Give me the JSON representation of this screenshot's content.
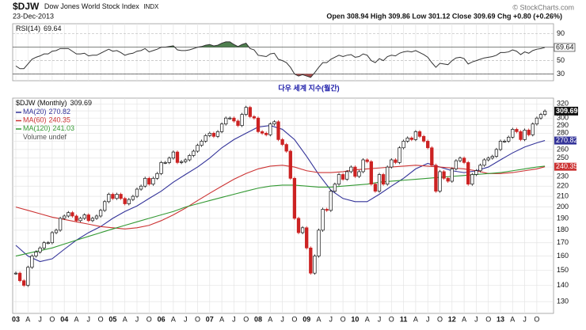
{
  "chart_data": {
    "type": "candlestick",
    "symbol": "$DJW",
    "name": "Dow Jones World Stock Index",
    "exchange": "INDX",
    "date": "23-Dec-2013",
    "quote": "Open 308.94 High 309.86 Low 301.12 Close 309.69 Chg +0.80 (+0.26%)",
    "source": "© StockCharts.com",
    "title": "다우 세계 지수(월간)",
    "legend_label": "$DJW (Monthly)",
    "volume_label": "Volume undef",
    "log_scale": true,
    "grid": true,
    "up_color": "#ffffff",
    "down_color": "#cc2222",
    "ylim": [
      125,
      325
    ],
    "yticks": [
      130,
      140,
      150,
      160,
      170,
      180,
      190,
      200,
      210,
      220,
      230,
      240,
      250,
      260,
      270,
      280,
      290,
      300,
      310,
      320
    ],
    "x": [
      "2003-01",
      "2003-02",
      "2003-03",
      "2003-04",
      "2003-05",
      "2003-06",
      "2003-07",
      "2003-08",
      "2003-09",
      "2003-10",
      "2003-11",
      "2003-12",
      "2004-01",
      "2004-02",
      "2004-03",
      "2004-04",
      "2004-05",
      "2004-06",
      "2004-07",
      "2004-08",
      "2004-09",
      "2004-10",
      "2004-11",
      "2004-12",
      "2005-01",
      "2005-02",
      "2005-03",
      "2005-04",
      "2005-05",
      "2005-06",
      "2005-07",
      "2005-08",
      "2005-09",
      "2005-10",
      "2005-11",
      "2005-12",
      "2006-01",
      "2006-02",
      "2006-03",
      "2006-04",
      "2006-05",
      "2006-06",
      "2006-07",
      "2006-08",
      "2006-09",
      "2006-10",
      "2006-11",
      "2006-12",
      "2007-01",
      "2007-02",
      "2007-03",
      "2007-04",
      "2007-05",
      "2007-06",
      "2007-07",
      "2007-08",
      "2007-09",
      "2007-10",
      "2007-11",
      "2007-12",
      "2008-01",
      "2008-02",
      "2008-03",
      "2008-04",
      "2008-05",
      "2008-06",
      "2008-07",
      "2008-08",
      "2008-09",
      "2008-10",
      "2008-11",
      "2008-12",
      "2009-01",
      "2009-02",
      "2009-03",
      "2009-04",
      "2009-05",
      "2009-06",
      "2009-07",
      "2009-08",
      "2009-09",
      "2009-10",
      "2009-11",
      "2009-12",
      "2010-01",
      "2010-02",
      "2010-03",
      "2010-04",
      "2010-05",
      "2010-06",
      "2010-07",
      "2010-08",
      "2010-09",
      "2010-10",
      "2010-11",
      "2010-12",
      "2011-01",
      "2011-02",
      "2011-03",
      "2011-04",
      "2011-05",
      "2011-06",
      "2011-07",
      "2011-08",
      "2011-09",
      "2011-10",
      "2011-11",
      "2011-12",
      "2012-01",
      "2012-02",
      "2012-03",
      "2012-04",
      "2012-05",
      "2012-06",
      "2012-07",
      "2012-08",
      "2012-09",
      "2012-10",
      "2012-11",
      "2012-12",
      "2013-01",
      "2013-02",
      "2013-03",
      "2013-04",
      "2013-05",
      "2013-06",
      "2013-07",
      "2013-08",
      "2013-09",
      "2013-10",
      "2013-11",
      "2013-12"
    ],
    "xticks": [
      {
        "value": "2003-01",
        "label": "03"
      },
      {
        "value": "2003-04",
        "label": "A"
      },
      {
        "value": "2003-07",
        "label": "J"
      },
      {
        "value": "2003-10",
        "label": "O"
      },
      {
        "value": "2004-01",
        "label": "04"
      },
      {
        "value": "2004-04",
        "label": "A"
      },
      {
        "value": "2004-07",
        "label": "J"
      },
      {
        "value": "2004-10",
        "label": "O"
      },
      {
        "value": "2005-01",
        "label": "05"
      },
      {
        "value": "2005-04",
        "label": "A"
      },
      {
        "value": "2005-07",
        "label": "J"
      },
      {
        "value": "2005-10",
        "label": "O"
      },
      {
        "value": "2006-01",
        "label": "06"
      },
      {
        "value": "2006-04",
        "label": "A"
      },
      {
        "value": "2006-07",
        "label": "J"
      },
      {
        "value": "2006-10",
        "label": "O"
      },
      {
        "value": "2007-01",
        "label": "07"
      },
      {
        "value": "2007-04",
        "label": "A"
      },
      {
        "value": "2007-07",
        "label": "J"
      },
      {
        "value": "2007-10",
        "label": "O"
      },
      {
        "value": "2008-01",
        "label": "08"
      },
      {
        "value": "2008-04",
        "label": "A"
      },
      {
        "value": "2008-07",
        "label": "J"
      },
      {
        "value": "2008-10",
        "label": "O"
      },
      {
        "value": "2009-01",
        "label": "09"
      },
      {
        "value": "2009-04",
        "label": "A"
      },
      {
        "value": "2009-07",
        "label": "J"
      },
      {
        "value": "2009-10",
        "label": "O"
      },
      {
        "value": "2010-01",
        "label": "10"
      },
      {
        "value": "2010-04",
        "label": "A"
      },
      {
        "value": "2010-07",
        "label": "J"
      },
      {
        "value": "2010-10",
        "label": "O"
      },
      {
        "value": "2011-01",
        "label": "11"
      },
      {
        "value": "2011-04",
        "label": "A"
      },
      {
        "value": "2011-07",
        "label": "J"
      },
      {
        "value": "2011-10",
        "label": "O"
      },
      {
        "value": "2012-01",
        "label": "12"
      },
      {
        "value": "2012-04",
        "label": "A"
      },
      {
        "value": "2012-07",
        "label": "J"
      },
      {
        "value": "2012-10",
        "label": "O"
      },
      {
        "value": "2013-01",
        "label": "13"
      },
      {
        "value": "2013-04",
        "label": "A"
      },
      {
        "value": "2013-07",
        "label": "J"
      },
      {
        "value": "2013-10",
        "label": "O"
      }
    ],
    "values": [
      148,
      143,
      140,
      152,
      160,
      163,
      166,
      170,
      170,
      178,
      180,
      190,
      192,
      195,
      192,
      188,
      190,
      193,
      188,
      190,
      192,
      197,
      205,
      212,
      208,
      212,
      208,
      203,
      207,
      210,
      217,
      220,
      228,
      222,
      228,
      233,
      245,
      245,
      250,
      257,
      245,
      246,
      248,
      253,
      258,
      265,
      270,
      277,
      280,
      276,
      282,
      292,
      300,
      300,
      296,
      290,
      305,
      315,
      302,
      300,
      282,
      280,
      278,
      292,
      295,
      272,
      266,
      258,
      228,
      190,
      178,
      182,
      166,
      148,
      160,
      180,
      198,
      197,
      215,
      222,
      232,
      227,
      235,
      240,
      230,
      235,
      248,
      246,
      222,
      215,
      232,
      222,
      240,
      248,
      245,
      262,
      270,
      274,
      272,
      282,
      276,
      270,
      262,
      242,
      215,
      235,
      228,
      225,
      238,
      247,
      250,
      245,
      222,
      232,
      236,
      242,
      248,
      250,
      252,
      260,
      270,
      270,
      275,
      285,
      282,
      272,
      284,
      278,
      292,
      300,
      305,
      309.69
    ],
    "series": [
      {
        "name": "MA(20)",
        "color": "#333399",
        "value_box": true,
        "x": [
          "2003-01",
          "2003-04",
          "2003-07",
          "2003-10",
          "2004-01",
          "2004-04",
          "2004-07",
          "2004-10",
          "2005-01",
          "2005-04",
          "2005-07",
          "2005-10",
          "2006-01",
          "2006-04",
          "2006-07",
          "2006-10",
          "2007-01",
          "2007-04",
          "2007-07",
          "2007-10",
          "2008-01",
          "2008-04",
          "2008-07",
          "2008-10",
          "2009-01",
          "2009-04",
          "2009-07",
          "2009-10",
          "2010-01",
          "2010-04",
          "2010-07",
          "2010-10",
          "2011-01",
          "2011-04",
          "2011-07",
          "2011-10",
          "2012-01",
          "2012-04",
          "2012-07",
          "2012-10",
          "2013-01",
          "2013-04",
          "2013-07",
          "2013-10",
          "2013-12"
        ],
        "values": [
          168,
          160,
          156,
          158,
          165,
          172,
          178,
          183,
          190,
          196,
          201,
          208,
          215,
          224,
          232,
          240,
          250,
          262,
          272,
          280,
          288,
          290,
          285,
          272,
          252,
          232,
          216,
          208,
          205,
          205,
          212,
          220,
          228,
          238,
          244,
          240,
          236,
          234,
          236,
          240,
          248,
          256,
          263,
          268,
          270.82
        ]
      },
      {
        "name": "MA(60)",
        "color": "#cc3333",
        "value_box": true,
        "x": [
          "2003-01",
          "2003-04",
          "2003-07",
          "2003-10",
          "2004-01",
          "2004-04",
          "2004-07",
          "2004-10",
          "2005-01",
          "2005-04",
          "2005-07",
          "2005-10",
          "2006-01",
          "2006-04",
          "2006-07",
          "2006-10",
          "2007-01",
          "2007-04",
          "2007-07",
          "2007-10",
          "2008-01",
          "2008-04",
          "2008-07",
          "2008-10",
          "2009-01",
          "2009-04",
          "2009-07",
          "2009-10",
          "2010-01",
          "2010-04",
          "2010-07",
          "2010-10",
          "2011-01",
          "2011-04",
          "2011-07",
          "2011-10",
          "2012-01",
          "2012-04",
          "2012-07",
          "2012-10",
          "2013-01",
          "2013-04",
          "2013-07",
          "2013-10",
          "2013-12"
        ],
        "values": [
          200,
          197,
          194,
          191,
          189,
          187,
          185,
          183,
          182,
          181,
          182,
          184,
          188,
          193,
          199,
          206,
          213,
          220,
          227,
          233,
          238,
          241,
          242,
          240,
          236,
          234,
          234,
          235,
          237,
          238,
          239,
          240,
          241,
          242,
          241,
          240,
          239,
          238,
          236,
          233,
          233,
          234,
          236,
          238,
          240.35
        ]
      },
      {
        "name": "MA(120)",
        "color": "#339933",
        "value_box": false,
        "x": [
          "2003-01",
          "2003-04",
          "2003-07",
          "2003-10",
          "2004-01",
          "2004-04",
          "2004-07",
          "2004-10",
          "2005-01",
          "2005-04",
          "2005-07",
          "2005-10",
          "2006-01",
          "2006-04",
          "2006-07",
          "2006-10",
          "2007-01",
          "2007-04",
          "2007-07",
          "2007-10",
          "2008-01",
          "2008-04",
          "2008-07",
          "2008-10",
          "2009-01",
          "2009-04",
          "2009-07",
          "2009-10",
          "2010-01",
          "2010-04",
          "2010-07",
          "2010-10",
          "2011-01",
          "2011-04",
          "2011-07",
          "2011-10",
          "2012-01",
          "2012-04",
          "2012-07",
          "2012-10",
          "2013-01",
          "2013-04",
          "2013-07",
          "2013-10",
          "2013-12"
        ],
        "values": [
          160,
          162,
          164,
          166,
          169,
          172,
          175,
          178,
          181,
          184,
          187,
          190,
          193,
          196,
          200,
          203,
          206,
          209,
          212,
          215,
          218,
          220,
          221,
          221,
          220,
          219,
          219,
          220,
          221,
          222,
          224,
          225,
          226,
          227,
          228,
          229,
          230,
          231,
          232,
          233,
          234,
          236,
          238,
          240,
          241.03
        ]
      }
    ],
    "rsi": {
      "name": "RSI(14)",
      "color": "#333333",
      "ylim": [
        20,
        105
      ],
      "yticks": [
        90,
        50,
        30
      ],
      "levels": [
        70,
        30
      ],
      "upper_fill": "#4f7f4f",
      "lower_fill": "#a85050",
      "values": [
        42,
        38,
        38,
        45,
        52,
        55,
        57,
        60,
        60,
        64,
        65,
        68,
        68,
        68,
        64,
        60,
        60,
        61,
        57,
        58,
        58,
        61,
        64,
        67,
        64,
        65,
        62,
        58,
        60,
        61,
        64,
        65,
        68,
        63,
        65,
        67,
        70,
        70,
        71,
        72,
        66,
        65,
        65,
        66,
        68,
        70,
        71,
        73,
        74,
        72,
        73,
        76,
        78,
        78,
        74,
        71,
        74,
        76,
        68,
        66,
        58,
        57,
        56,
        60,
        61,
        52,
        50,
        47,
        40,
        30,
        27,
        29,
        27,
        25,
        32,
        40,
        47,
        47,
        52,
        55,
        58,
        56,
        58,
        59,
        55,
        56,
        60,
        58,
        50,
        47,
        53,
        50,
        56,
        58,
        57,
        61,
        63,
        64,
        63,
        65,
        62,
        59,
        55,
        47,
        40,
        46,
        45,
        44,
        50,
        54,
        55,
        53,
        45,
        48,
        50,
        52,
        54,
        55,
        56,
        58,
        62,
        62,
        63,
        66,
        64,
        59,
        63,
        61,
        65,
        67,
        68,
        69.64
      ]
    }
  }
}
